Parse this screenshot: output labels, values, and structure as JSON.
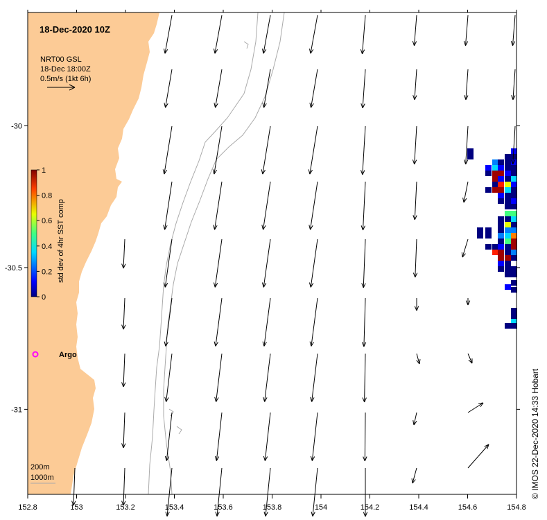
{
  "title": "18-Dec-2020 10Z",
  "vector_info": {
    "line1": "NRT00 GSL",
    "line2": "18-Dec 18:00Z",
    "line3": "0.5m/s (1kt 6h)"
  },
  "colorbar": {
    "label": "std dev of 4hr SST comp",
    "ticks": [
      "1",
      "0.8",
      "0.6",
      "0.4",
      "0.2",
      "0"
    ],
    "range": [
      0,
      1
    ]
  },
  "argo_label": "Argo",
  "depth_legend": {
    "line1": "200m",
    "line2": "1000m"
  },
  "credit": "©  IMOS 22-Dec-2020 14:33 Hobart",
  "x_axis": {
    "ticks": [
      "152.8",
      "153",
      "153.2",
      "153.4",
      "153.6",
      "153.8",
      "154",
      "154.2",
      "154.4",
      "154.6",
      "154.8"
    ],
    "range": [
      152.8,
      154.8
    ]
  },
  "y_axis": {
    "ticks": [
      "-30",
      "-30.5",
      "-31"
    ],
    "range": [
      -31.3,
      -29.6
    ]
  },
  "colors": {
    "land": "#fccb96",
    "argo": "#ff00ff",
    "contour": "#aaaaaa"
  }
}
